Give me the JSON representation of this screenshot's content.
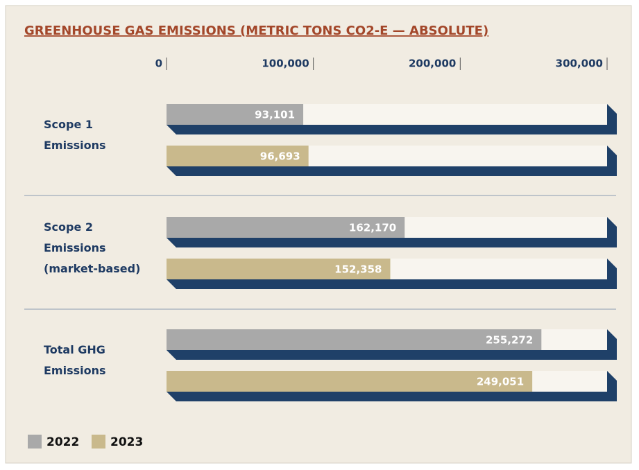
{
  "chart_data": {
    "type": "bar",
    "orientation": "horizontal",
    "title": "GREENHOUSE GAS EMISSIONS (METRIC TONS CO2-E — ABSOLUTE)",
    "categories": [
      "Scope 1 Emissions",
      "Scope 2 Emissions (market-based)",
      "Total GHG Emissions"
    ],
    "series": [
      {
        "name": "2022",
        "color": "#a9a9a9",
        "values": [
          93101,
          162170,
          255272
        ],
        "value_labels": [
          "93,101",
          "162,170",
          "255,272"
        ]
      },
      {
        "name": "2023",
        "color": "#c9b98c",
        "values": [
          96693,
          152358,
          249051
        ],
        "value_labels": [
          "96,693",
          "152,358",
          "249,051"
        ]
      }
    ],
    "xlim": [
      0,
      300000
    ],
    "xticks": [
      0,
      {
        "value": 100000,
        "label": "100,000"
      },
      {
        "value": 200000,
        "label": "200,000"
      },
      {
        "value": 300000,
        "label": "300,000"
      }
    ],
    "legend": "bottom-left"
  }
}
